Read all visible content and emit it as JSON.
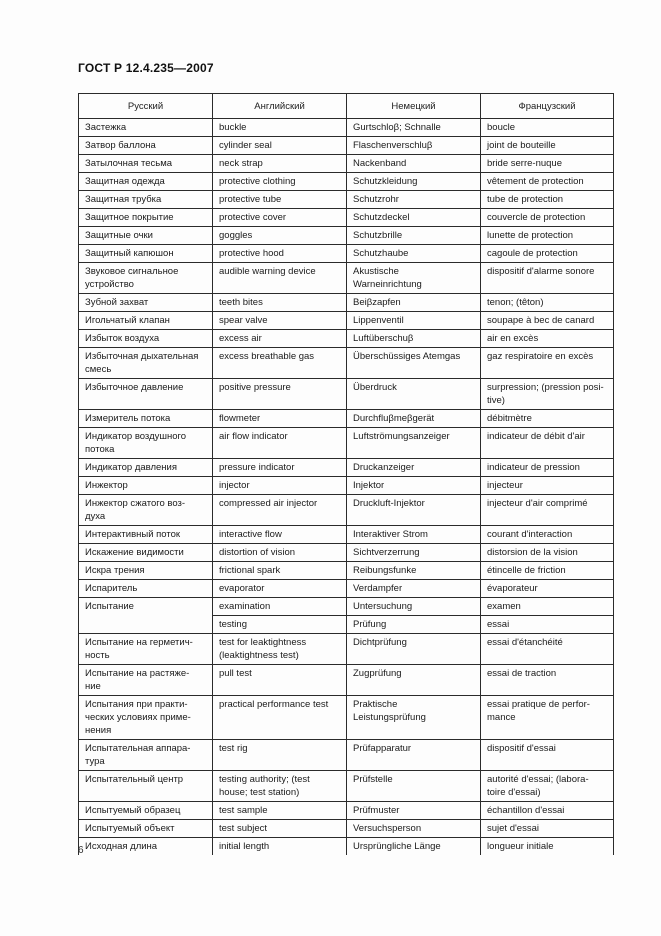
{
  "page": {
    "title": "ГОСТ Р 12.4.235—2007",
    "page_number": "6"
  },
  "table": {
    "headers": [
      "Русский",
      "Английский",
      "Немецкий",
      "Французский"
    ],
    "rows": [
      {
        "ru": "Застежка",
        "en": "buckle",
        "de": "Gurtschloβ; Schnalle",
        "fr": "boucle"
      },
      {
        "ru": "Затвор баллона",
        "en": "cylinder seal",
        "de": "Flaschenverschluβ",
        "fr": "joint de bouteille"
      },
      {
        "ru": "Затылочная тесьма",
        "en": "neck strap",
        "de": "Nackenband",
        "fr": "bride serre-nuque"
      },
      {
        "ru": "Защитная одежда",
        "en": "protective clothing",
        "de": "Schutzkleidung",
        "fr": "vêtement de protection"
      },
      {
        "ru": "Защитная трубка",
        "en": "protective tube",
        "de": "Schutzrohr",
        "fr": "tube de protection"
      },
      {
        "ru": "Защитное покрытие",
        "en": "protective cover",
        "de": "Schutzdeckel",
        "fr": "couvercle de protection"
      },
      {
        "ru": "Защитные очки",
        "en": "goggles",
        "de": "Schutzbrille",
        "fr": "lunette de protection"
      },
      {
        "ru": "Защитный капюшон",
        "en": "protective hood",
        "de": "Schutzhaube",
        "fr": "cagoule de protection"
      },
      {
        "ru": "Звуковое сигнальное\nустройство",
        "en": "audible warning device",
        "de": "Akustische\nWarneinrichtung",
        "fr": "dispositif d'alarme sonore"
      },
      {
        "ru": "Зубной захват",
        "en": "teeth bites",
        "de": "Beiβzapfen",
        "fr": "tenon; (têton)"
      },
      {
        "ru": "Игольчатый клапан",
        "en": "spear valve",
        "de": "Lippenventil",
        "fr": "soupape à bec de canard"
      },
      {
        "ru": "Избыток воздуха",
        "en": "excess air",
        "de": "Luftüberschuβ",
        "fr": "air en excès"
      },
      {
        "ru": "Избыточная дыхательная\nсмесь",
        "en": "excess breathable gas",
        "de": "Überschüssiges Atemgas",
        "fr": "gaz respiratoire en excès"
      },
      {
        "ru": "Избыточное давление",
        "en": "positive pressure",
        "de": "Überdruck",
        "fr": "surpression; (pression posi-\ntive)"
      },
      {
        "ru": "Измеритель потока",
        "en": "flowmeter",
        "de": "Durchfluβmeβgerät",
        "fr": "débitmètre"
      },
      {
        "ru": "Индикатор воздушного\nпотока",
        "en": "air flow indicator",
        "de": "Luftströmungsanzeiger",
        "fr": "indicateur de débit d'air"
      },
      {
        "ru": "Индикатор давления",
        "en": "pressure indicator",
        "de": "Druckanzeiger",
        "fr": "indicateur de pression"
      },
      {
        "ru": "Инжектор",
        "en": "injector",
        "de": "Injektor",
        "fr": "injecteur"
      },
      {
        "ru": "Инжектор сжатого воз-\nдуха",
        "en": "compressed air injector",
        "de": "Druckluft-Injektor",
        "fr": "injecteur d'air comprimé"
      },
      {
        "ru": "Интерактивный поток",
        "en": "interactive flow",
        "de": "Interaktiver Strom",
        "fr": "courant d'interaction"
      },
      {
        "ru": "Искажение видимости",
        "en": "distortion of vision",
        "de": "Sichtverzerrung",
        "fr": "distorsion de la vision"
      },
      {
        "ru": "Искра трения",
        "en": "frictional spark",
        "de": "Reibungsfunke",
        "fr": "étincelle de friction"
      },
      {
        "ru": "Испаритель",
        "en": "evaporator",
        "de": "Verdampfer",
        "fr": "évaporateur"
      },
      {
        "ru": "Испытание",
        "ru_rowspan": 2,
        "en": "examination",
        "de": "Untersuchung",
        "fr": "examen"
      },
      {
        "en": "testing",
        "de": "Prüfung",
        "fr": "essai"
      },
      {
        "ru": "Испытание на герметич-\nность",
        "en": "test for leaktightness\n(leaktightness test)",
        "de": "Dichtprüfung",
        "fr": "essai d'étanchéité"
      },
      {
        "ru": "Испытание на растяже-\nние",
        "en": "pull test",
        "de": "Zugprüfung",
        "fr": "essai de traction"
      },
      {
        "ru": "Испытания при практи-\nческих условиях приме-\nнения",
        "en": "practical performance test",
        "de": "Praktische\nLeistungsprüfung",
        "fr": "essai pratique de perfor-\nmance"
      },
      {
        "ru": "Испытательная аппара-\nтура",
        "en": "test rig",
        "de": "Prüfapparatur",
        "fr": "dispositif d'essai"
      },
      {
        "ru": "Испытательный центр",
        "en": "testing authority; (test\nhouse; test station)",
        "de": "Prüfstelle",
        "fr": "autorité d'essai; (labora-\ntoire d'essai)"
      },
      {
        "ru": "Испытуемый образец",
        "en": "test sample",
        "de": "Prüfmuster",
        "fr": "échantillon d'essai"
      },
      {
        "ru": "Испытуемый объект",
        "en": "test subject",
        "de": "Versuchsperson",
        "fr": "sujet d'essai"
      },
      {
        "ru": "Исходная длина",
        "en": "initial length",
        "de": "Ursprüngliche Länge",
        "fr": "longueur initiale"
      }
    ]
  }
}
